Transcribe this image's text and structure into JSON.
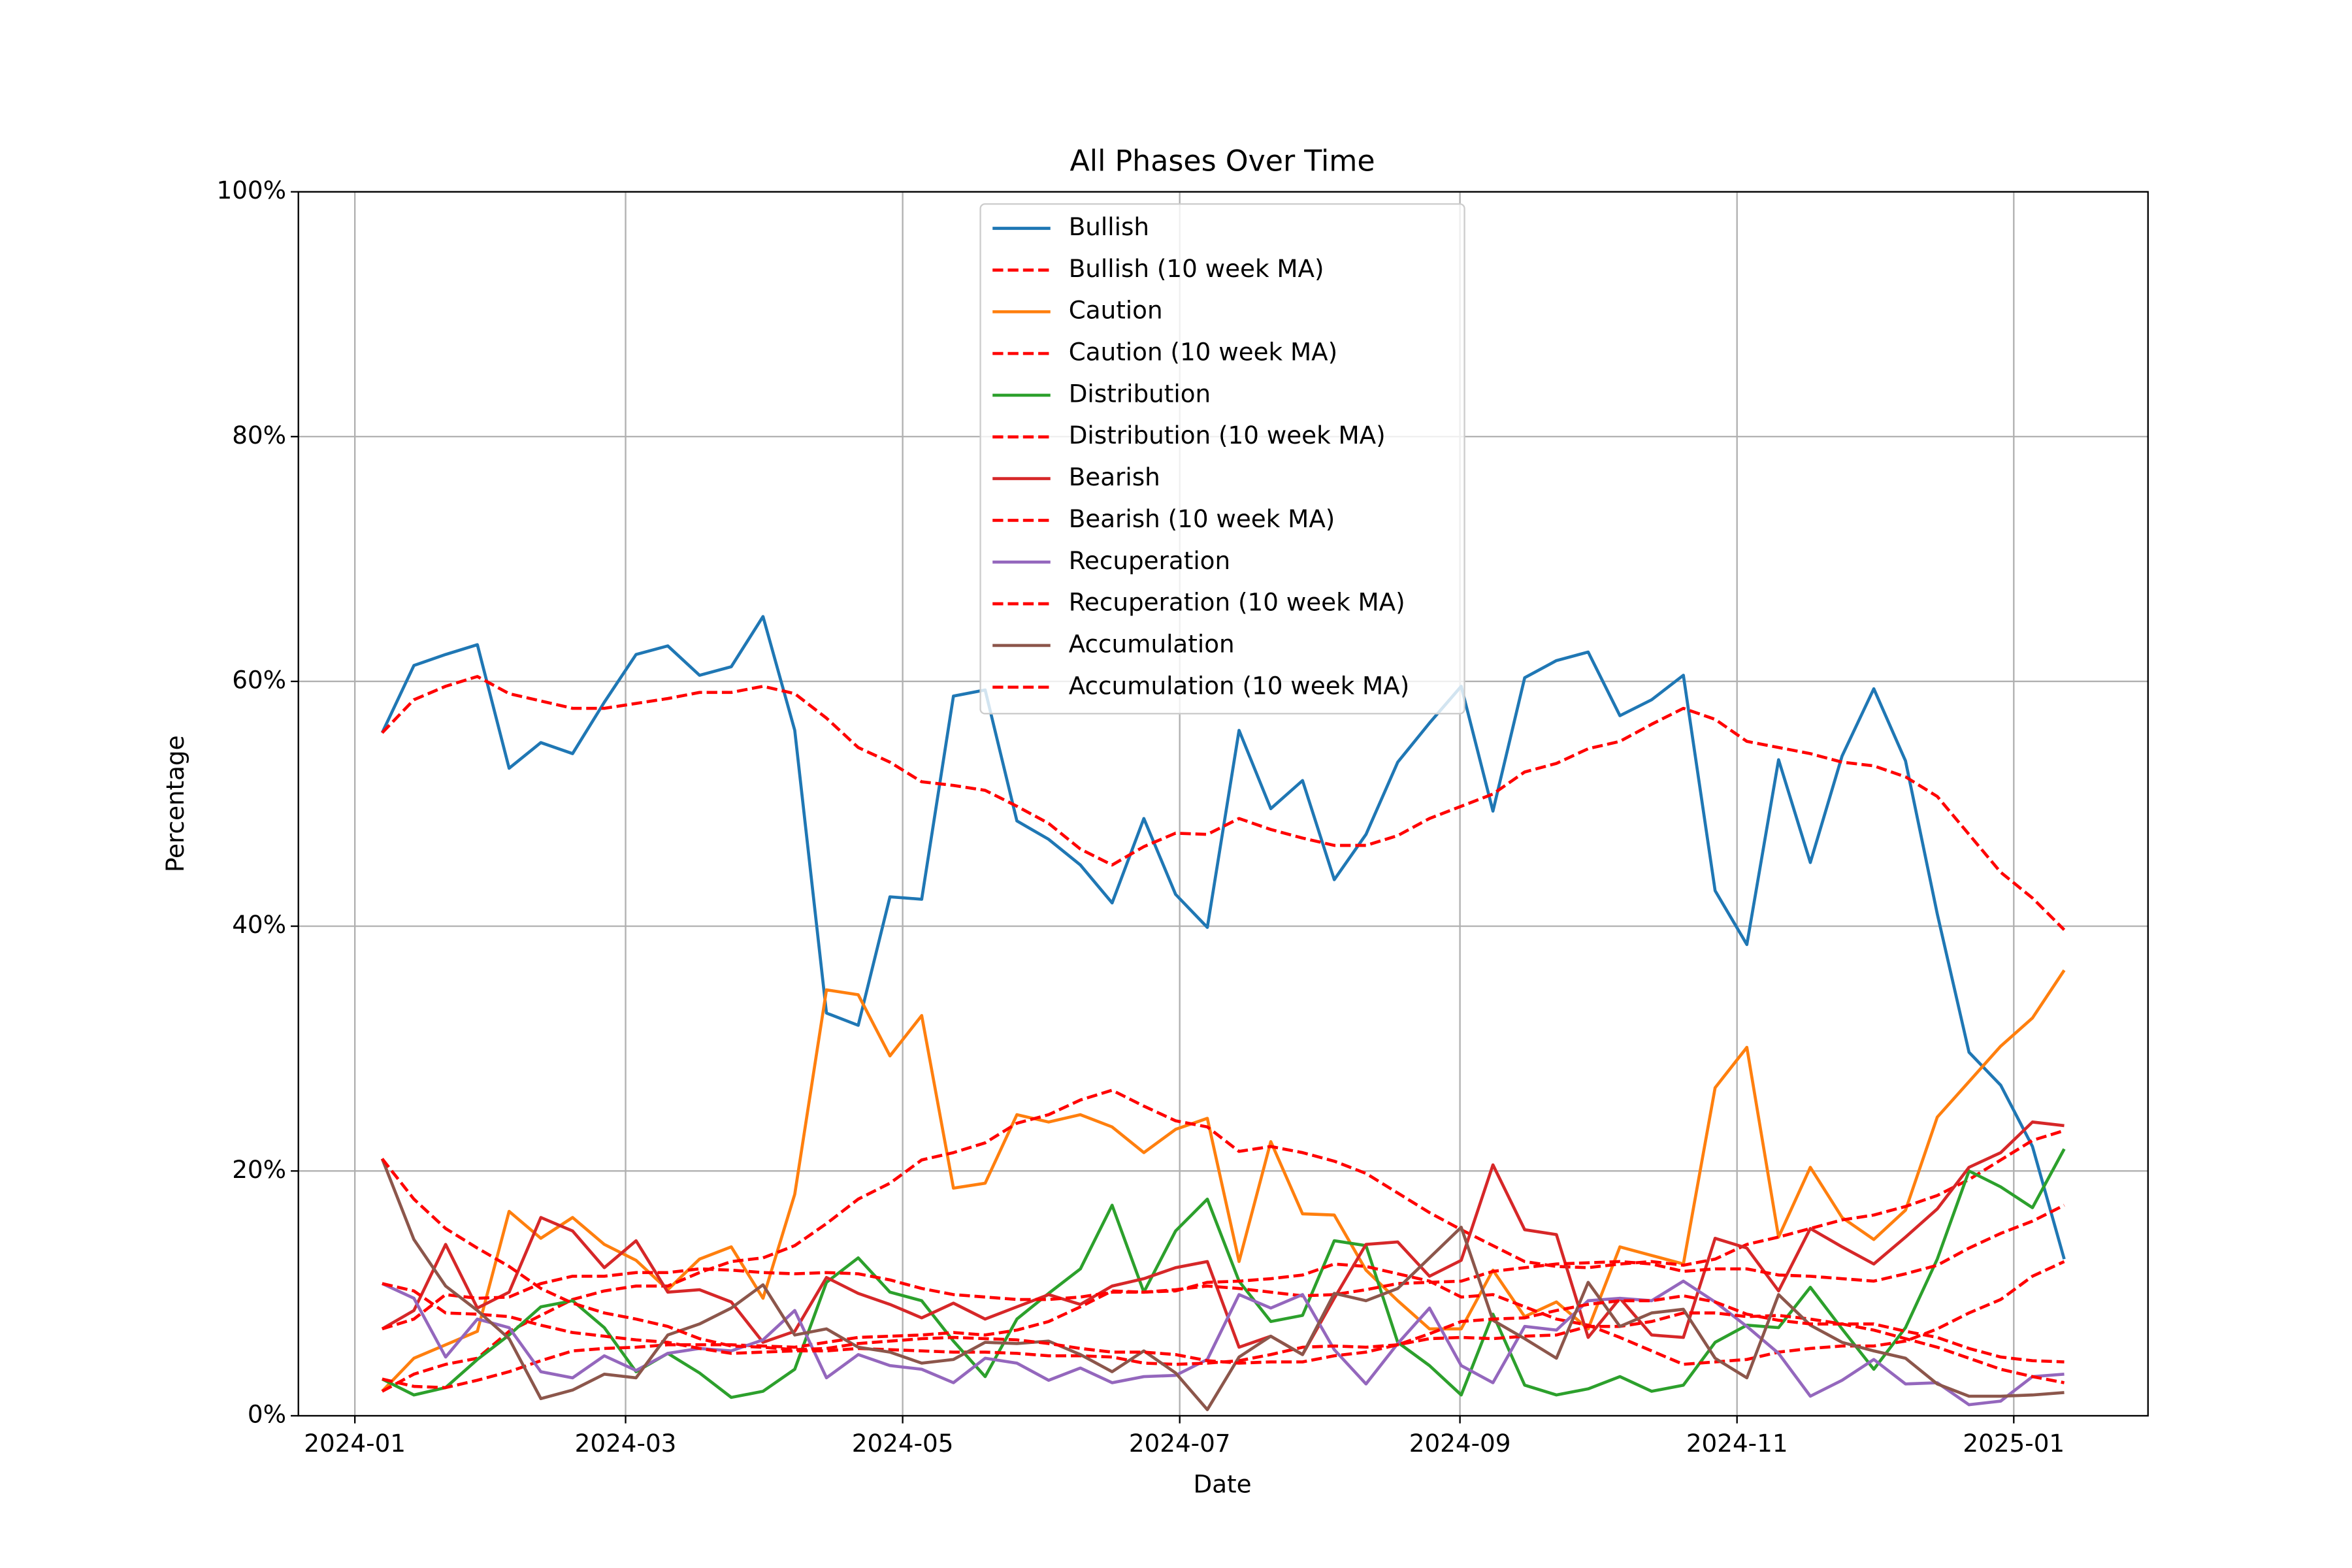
{
  "chart_data": {
    "type": "line",
    "title": "All Phases Over Time",
    "x_label": "Date",
    "y_label": "Percentage",
    "xlim": [
      -2.64,
      55.64
    ],
    "xticks": [
      {
        "value": -0.86,
        "label": "2024-01"
      },
      {
        "value": 7.67,
        "label": "2024-03"
      },
      {
        "value": 16.4,
        "label": "2024-05"
      },
      {
        "value": 25.13,
        "label": "2024-07"
      },
      {
        "value": 33.96,
        "label": "2024-09"
      },
      {
        "value": 42.69,
        "label": "2024-11"
      },
      {
        "value": 51.41,
        "label": "2025-01"
      }
    ],
    "ylim": [
      0,
      100
    ],
    "yticks": [
      {
        "value": 0,
        "label": "0%"
      },
      {
        "value": 20,
        "label": "20%"
      },
      {
        "value": 40,
        "label": "40%"
      },
      {
        "value": 60,
        "label": "60%"
      },
      {
        "value": 80,
        "label": "80%"
      },
      {
        "value": 100,
        "label": "100%"
      }
    ],
    "grid": true,
    "legend": "upper center",
    "series": [
      {
        "name": "Bullish",
        "color": "#1f77b4",
        "linestyle": "solid",
        "values": [
          55.8,
          61.3,
          62.2,
          63.0,
          52.9,
          55.0,
          54.1,
          58.3,
          62.2,
          62.9,
          60.5,
          61.2,
          65.3,
          56.0,
          32.9,
          31.9,
          42.4,
          42.2,
          58.8,
          59.3,
          48.6,
          47.1,
          45.0,
          41.9,
          48.8,
          42.6,
          39.9,
          56.0,
          49.6,
          51.9,
          43.8,
          47.5,
          53.4,
          56.6,
          59.6,
          49.4,
          60.3,
          61.7,
          62.4,
          57.2,
          58.5,
          60.5,
          42.9,
          38.5,
          53.6,
          45.2,
          53.9,
          59.4,
          53.5,
          41.0,
          29.7,
          27.0,
          22.0,
          12.8
        ]
      },
      {
        "name": "Bullish (10 week MA)",
        "color": "#ff0000",
        "linestyle": "dashed",
        "values": [
          55.8,
          58.5,
          59.6,
          60.4,
          59.0,
          58.4,
          57.8,
          57.8,
          58.2,
          58.6,
          59.1,
          59.1,
          59.6,
          59.0,
          57.0,
          54.6,
          53.4,
          51.8,
          51.5,
          51.1,
          49.8,
          48.4,
          46.3,
          45.0,
          46.5,
          47.6,
          47.5,
          48.8,
          47.9,
          47.2,
          46.6,
          46.6,
          47.4,
          48.8,
          49.8,
          50.8,
          52.6,
          53.3,
          54.5,
          55.1,
          56.5,
          57.8,
          56.9,
          55.1,
          54.6,
          54.1,
          53.4,
          53.1,
          52.2,
          50.6,
          47.5,
          44.4,
          42.3,
          39.7
        ]
      },
      {
        "name": "Caution",
        "color": "#ff7f0e",
        "linestyle": "solid",
        "values": [
          2.0,
          4.7,
          5.8,
          6.9,
          16.7,
          14.5,
          16.2,
          14.0,
          12.7,
          10.3,
          12.8,
          13.8,
          9.6,
          18.1,
          34.8,
          34.4,
          29.4,
          32.7,
          18.6,
          19.0,
          24.6,
          24.0,
          24.6,
          23.6,
          21.5,
          23.4,
          24.3,
          12.6,
          22.4,
          16.5,
          16.4,
          11.9,
          9.4,
          7.1,
          7.1,
          11.9,
          8.1,
          9.3,
          7.1,
          13.8,
          13.1,
          12.4,
          26.8,
          30.1,
          14.6,
          20.3,
          16.2,
          14.4,
          16.8,
          24.4,
          27.3,
          30.2,
          32.5,
          36.4
        ]
      },
      {
        "name": "Caution (10 week MA)",
        "color": "#ff0000",
        "linestyle": "dashed",
        "values": [
          2.0,
          3.4,
          4.2,
          4.7,
          6.9,
          8.2,
          9.5,
          10.2,
          10.6,
          10.6,
          11.7,
          12.6,
          12.9,
          13.9,
          15.7,
          17.7,
          19.0,
          20.9,
          21.5,
          22.3,
          23.9,
          24.6,
          25.8,
          26.6,
          25.3,
          24.1,
          23.6,
          21.6,
          22.0,
          21.5,
          20.8,
          19.8,
          18.2,
          16.6,
          15.2,
          13.9,
          12.6,
          12.2,
          12.1,
          12.4,
          12.6,
          12.3,
          12.8,
          14.0,
          14.6,
          15.3,
          16.0,
          16.4,
          17.1,
          18.0,
          19.3,
          20.9,
          22.5,
          23.3
        ]
      },
      {
        "name": "Distribution",
        "color": "#2ca02c",
        "linestyle": "solid",
        "values": [
          3.0,
          1.7,
          2.3,
          4.6,
          6.6,
          8.9,
          9.4,
          7.2,
          3.6,
          5.1,
          3.5,
          1.5,
          2.0,
          3.8,
          10.9,
          12.9,
          10.1,
          9.4,
          6.1,
          3.2,
          7.9,
          10.0,
          12.0,
          17.2,
          10.1,
          15.1,
          17.7,
          11.0,
          7.7,
          8.2,
          14.3,
          13.9,
          6.0,
          4.1,
          1.7,
          8.3,
          2.5,
          1.7,
          2.2,
          3.2,
          2.0,
          2.5,
          6.0,
          7.4,
          7.2,
          10.5,
          7.1,
          3.8,
          7.2,
          12.8,
          20.0,
          18.7,
          17.0,
          21.8
        ]
      },
      {
        "name": "Distribution (10 week MA)",
        "color": "#ff0000",
        "linestyle": "dashed",
        "values": [
          3.0,
          2.4,
          2.3,
          2.9,
          3.6,
          4.5,
          5.3,
          5.5,
          5.6,
          5.8,
          5.8,
          5.8,
          5.7,
          5.6,
          6.0,
          6.4,
          6.5,
          6.6,
          6.8,
          6.6,
          7.0,
          7.7,
          8.9,
          10.2,
          10.1,
          10.2,
          10.9,
          11.0,
          11.2,
          11.5,
          12.4,
          12.2,
          11.6,
          11.0,
          9.7,
          9.9,
          8.9,
          7.9,
          7.4,
          6.4,
          5.3,
          4.2,
          4.4,
          4.6,
          5.2,
          5.5,
          5.7,
          5.7,
          6.1,
          7.1,
          8.4,
          9.5,
          11.4,
          12.6
        ]
      },
      {
        "name": "Bearish",
        "color": "#d62728",
        "linestyle": "solid",
        "values": [
          7.1,
          8.6,
          14.0,
          8.8,
          10.1,
          16.2,
          15.1,
          12.1,
          14.3,
          10.1,
          10.3,
          9.3,
          6.0,
          6.9,
          11.3,
          10.0,
          9.1,
          8.0,
          9.2,
          7.9,
          8.9,
          9.9,
          9.1,
          10.6,
          11.2,
          12.1,
          12.6,
          5.6,
          6.5,
          5.0,
          9.6,
          14.0,
          14.2,
          11.4,
          12.7,
          20.5,
          15.2,
          14.8,
          6.4,
          9.6,
          6.6,
          6.4,
          14.5,
          13.7,
          10.2,
          15.3,
          13.8,
          12.4,
          14.6,
          16.9,
          20.3,
          21.5,
          24.0,
          23.7
        ]
      },
      {
        "name": "Bearish (10 week MA)",
        "color": "#ff0000",
        "linestyle": "dashed",
        "values": [
          7.1,
          7.9,
          9.9,
          9.6,
          9.7,
          10.8,
          11.4,
          11.4,
          11.7,
          11.7,
          12.0,
          11.9,
          11.7,
          11.6,
          11.7,
          11.6,
          11.1,
          10.4,
          9.9,
          9.7,
          9.5,
          9.5,
          9.7,
          10.1,
          10.1,
          10.3,
          10.6,
          10.4,
          10.1,
          9.8,
          9.9,
          10.3,
          10.8,
          10.9,
          11.0,
          11.8,
          12.1,
          12.4,
          12.5,
          12.6,
          12.4,
          11.8,
          12.0,
          12.0,
          11.5,
          11.4,
          11.2,
          11.0,
          11.6,
          12.3,
          13.7,
          14.9,
          15.9,
          17.2
        ]
      },
      {
        "name": "Recuperation",
        "color": "#9467bd",
        "linestyle": "solid",
        "values": [
          10.8,
          9.6,
          4.8,
          7.9,
          7.2,
          3.6,
          3.1,
          4.9,
          3.7,
          5.1,
          5.5,
          5.3,
          6.2,
          8.6,
          3.1,
          5.0,
          4.1,
          3.8,
          2.7,
          4.7,
          4.3,
          2.9,
          3.9,
          2.7,
          3.2,
          3.3,
          4.6,
          9.9,
          8.8,
          9.9,
          5.4,
          2.6,
          5.9,
          8.8,
          4.1,
          2.7,
          7.3,
          7.0,
          9.4,
          9.6,
          9.4,
          11.0,
          9.3,
          7.3,
          5.1,
          1.6,
          2.9,
          4.6,
          2.6,
          2.7,
          0.9,
          1.2,
          3.2,
          3.4
        ]
      },
      {
        "name": "Recuperation (10 week MA)",
        "color": "#ff0000",
        "linestyle": "dashed",
        "values": [
          10.8,
          10.2,
          8.4,
          8.3,
          8.1,
          7.4,
          6.8,
          6.5,
          6.2,
          6.0,
          5.5,
          5.1,
          5.2,
          5.3,
          5.3,
          5.5,
          5.4,
          5.3,
          5.2,
          5.2,
          5.1,
          4.9,
          4.9,
          4.8,
          4.3,
          4.2,
          4.3,
          4.5,
          5.0,
          5.6,
          5.7,
          5.6,
          5.8,
          6.3,
          6.4,
          6.3,
          6.5,
          6.6,
          7.3,
          7.3,
          7.7,
          8.4,
          8.4,
          8.1,
          8.2,
          7.9,
          7.5,
          7.0,
          6.3,
          5.6,
          4.7,
          3.8,
          3.2,
          2.7
        ]
      },
      {
        "name": "Accumulation",
        "color": "#8c564b",
        "linestyle": "solid",
        "values": [
          21.0,
          14.4,
          10.6,
          8.6,
          6.3,
          1.4,
          2.1,
          3.4,
          3.1,
          6.6,
          7.5,
          8.8,
          10.7,
          6.6,
          7.1,
          5.6,
          5.2,
          4.3,
          4.6,
          6.0,
          5.9,
          6.1,
          5.0,
          3.6,
          5.3,
          3.5,
          0.5,
          4.8,
          6.5,
          5.0,
          10.0,
          9.4,
          10.4,
          12.9,
          15.4,
          7.8,
          6.3,
          4.7,
          10.9,
          7.3,
          8.4,
          8.7,
          4.7,
          3.1,
          9.9,
          7.4,
          6.0,
          5.3,
          4.7,
          2.6,
          1.6,
          1.6,
          1.7,
          1.9
        ]
      },
      {
        "name": "Accumulation (10 week MA)",
        "color": "#ff0000",
        "linestyle": "dashed",
        "values": [
          21.0,
          17.7,
          15.3,
          13.7,
          12.2,
          10.4,
          9.2,
          8.4,
          7.9,
          7.3,
          6.3,
          5.7,
          5.6,
          5.4,
          5.5,
          5.9,
          6.1,
          6.3,
          6.4,
          6.3,
          6.2,
          5.9,
          5.5,
          5.2,
          5.2,
          5.0,
          4.5,
          4.3,
          4.4,
          4.4,
          4.9,
          5.2,
          5.8,
          6.7,
          7.7,
          7.9,
          8.0,
          8.6,
          9.1,
          9.4,
          9.4,
          9.8,
          9.3,
          8.3,
          7.8,
          7.5,
          7.5,
          7.5,
          6.9,
          6.4,
          5.5,
          4.8,
          4.5,
          4.4
        ]
      }
    ]
  }
}
